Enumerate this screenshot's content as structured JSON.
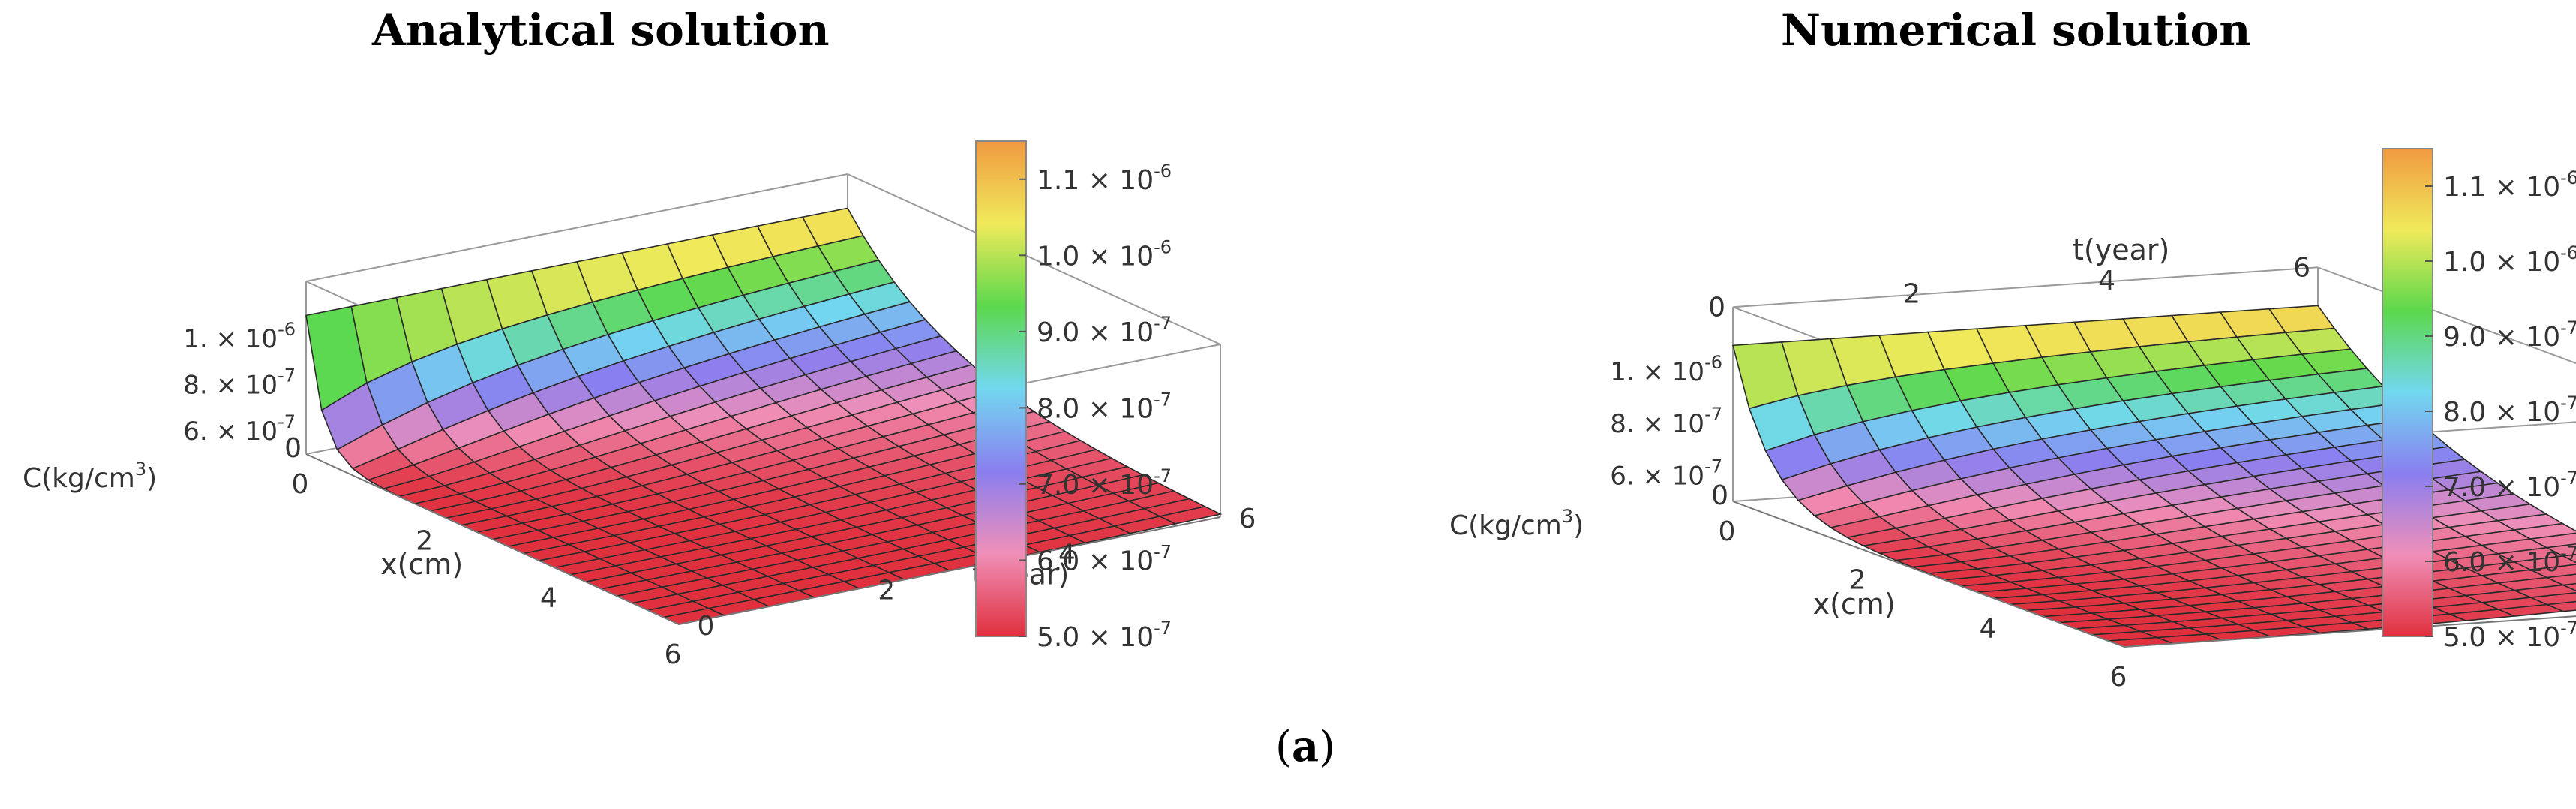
{
  "figure": {
    "caption_open": "(",
    "caption_label": "a",
    "caption_close": ")"
  },
  "chart_data": [
    {
      "type": "surface",
      "title": "Analytical solution",
      "zlabel": "C(kg/cm",
      "zlabel_sup": "3",
      "zlabel_close": ")",
      "xlabel": "x(cm)",
      "ylabel": "t(year)",
      "x_ticks": [
        "0",
        "2",
        "4",
        "6"
      ],
      "y_ticks": [
        "0",
        "2",
        "4",
        "6"
      ],
      "z_ticks": [
        {
          "value": 6e-07,
          "mant": "6.",
          "exp": "-7"
        },
        {
          "value": 8e-07,
          "mant": "8.",
          "exp": "-7"
        },
        {
          "value": 1e-06,
          "mant": "1.",
          "exp": "-6"
        }
      ],
      "xlim": [
        0,
        6
      ],
      "ylim": [
        0,
        6
      ],
      "zlim": [
        5e-07,
        1.15e-06
      ],
      "boundary_value": 1.1e-06,
      "background_value": 5e-07,
      "grid": true
    },
    {
      "type": "surface",
      "title": "Numerical solution",
      "zlabel": "C(kg/cm",
      "zlabel_sup": "3",
      "zlabel_close": ")",
      "xlabel": "x(cm)",
      "ylabel": "t(year)",
      "x_ticks": [
        "0",
        "2",
        "4",
        "6"
      ],
      "y_ticks": [
        "0",
        "2",
        "4",
        "6"
      ],
      "z_ticks": [
        {
          "value": 6e-07,
          "mant": "6.",
          "exp": "-7"
        },
        {
          "value": 8e-07,
          "mant": "8.",
          "exp": "-7"
        },
        {
          "value": 1e-06,
          "mant": "1.",
          "exp": "-6"
        }
      ],
      "xlim": [
        0,
        6
      ],
      "ylim": [
        0,
        6
      ],
      "zlim": [
        5e-07,
        1.15e-06
      ],
      "boundary_value": 1.1e-06,
      "background_value": 5e-07,
      "grid": true
    }
  ],
  "colorbar": {
    "entries": [
      {
        "value": 1.1e-06,
        "mant": "1.1",
        "exp": "-6"
      },
      {
        "value": 1e-06,
        "mant": "1.0",
        "exp": "-6"
      },
      {
        "value": 9e-07,
        "mant": "9.0",
        "exp": "-7"
      },
      {
        "value": 8e-07,
        "mant": "8.0",
        "exp": "-7"
      },
      {
        "value": 7e-07,
        "mant": "7.0",
        "exp": "-7"
      },
      {
        "value": 6e-07,
        "mant": "6.0",
        "exp": "-7"
      },
      {
        "value": 5e-07,
        "mant": "5.0",
        "exp": "-7"
      }
    ],
    "colors": [
      "#e0303e",
      "#f08fb8",
      "#8a7ef0",
      "#72d8f0",
      "#5cd84c",
      "#f0ea5a",
      "#f09a40"
    ],
    "range": [
      5e-07,
      1.15e-06
    ]
  }
}
